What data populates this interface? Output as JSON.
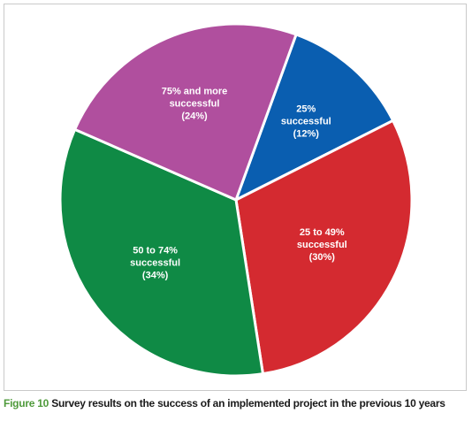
{
  "chart_data": {
    "type": "pie",
    "slices": [
      {
        "label": [
          "25%",
          "successful",
          "(12%)"
        ],
        "value": 12,
        "color": "#0a5eb0"
      },
      {
        "label": [
          "25 to 49%",
          "successful",
          "(30%)"
        ],
        "value": 30,
        "color": "#d42a30"
      },
      {
        "label": [
          "50 to 74%",
          "successful",
          "(34%)"
        ],
        "value": 34,
        "color": "#0f8a45"
      },
      {
        "label": [
          "75% and more",
          "successful",
          "(24%)"
        ],
        "value": 24,
        "color": "#b04f9e"
      }
    ]
  },
  "caption": {
    "figure_number": "Figure 10",
    "text": " Survey results on the success of an implemented project in the previous 10 years"
  }
}
